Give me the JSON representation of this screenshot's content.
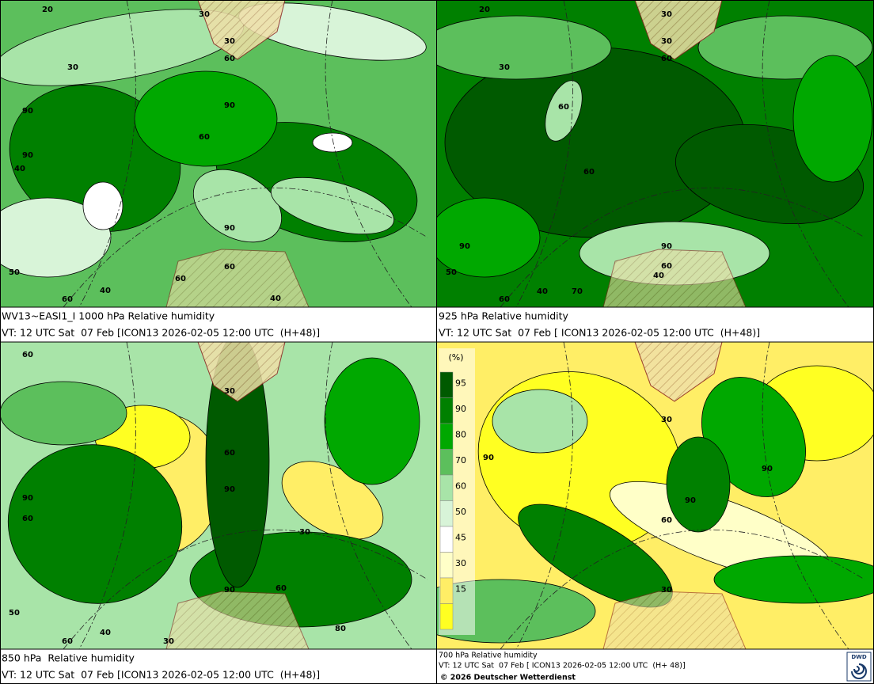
{
  "panels": [
    {
      "caption_lines": [
        "WV13~EASI1_I 1000 hPa Relative humidity",
        "VT: 12 UTC Sat  07 Feb [ICON13 2026-02-05 12:00 UTC  (H+48)]"
      ],
      "contour_labels": [
        "20",
        "30",
        "30",
        "60",
        "30",
        "90",
        "90",
        "60",
        "90",
        "40",
        "90",
        "60",
        "50",
        "60",
        "40",
        "60",
        "40"
      ]
    },
    {
      "caption_lines": [
        "925 hPa Relative humidity",
        "VT: 12 UTC Sat  07 Feb [ ICON13 2026-02-05 12:00 UTC  (H+48)]"
      ],
      "contour_labels": [
        "20",
        "30",
        "30",
        "60",
        "30",
        "60",
        "60",
        "90",
        "90",
        "60",
        "50",
        "40",
        "70",
        "60",
        "40"
      ]
    },
    {
      "caption_lines": [
        "850 hPa  Relative humidity",
        "VT: 12 UTC Sat  07 Feb [ICON13 2026-02-05 12:00 UTC  (H+48)]"
      ],
      "contour_labels": [
        "60",
        "30",
        "60",
        "90",
        "90",
        "60",
        "30",
        "90",
        "60",
        "50",
        "40",
        "60",
        "30",
        "80"
      ]
    },
    {
      "caption_lines": [
        "700 hPa Relative humidity",
        "VT: 12 UTC Sat  07 Feb [ ICON13 2026-02-05 12:00 UTC  (H+ 48)]"
      ],
      "contour_labels": [
        "30",
        "90",
        "90",
        "90",
        "60",
        "30"
      ]
    }
  ],
  "legend": {
    "unit": "(%)",
    "ticks": [
      95,
      90,
      80,
      70,
      60,
      50,
      45,
      30,
      15
    ],
    "colors": [
      "#005a00",
      "#008000",
      "#00a800",
      "#5cbf5c",
      "#a8e4a8",
      "#d8f4d8",
      "#ffffff",
      "#ffffc8",
      "#ffee66",
      "#ffff22"
    ]
  },
  "copyright": "© 2026 Deutscher Wetterdienst",
  "logo": "DWD"
}
